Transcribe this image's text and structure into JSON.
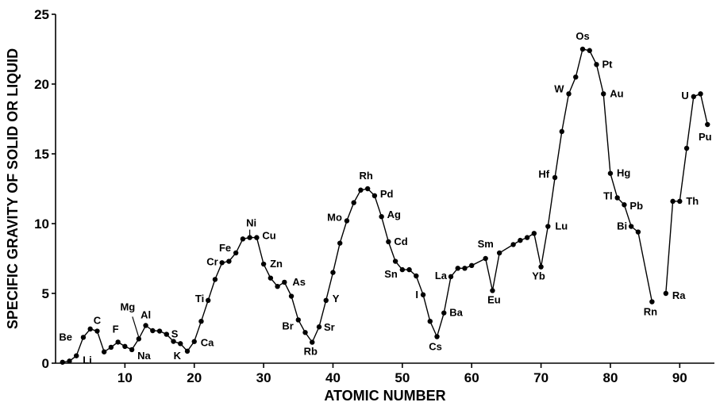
{
  "chart_data": {
    "type": "line",
    "xlabel": "ATOMIC NUMBER",
    "ylabel": "SPECIFIC GRAVITY OF SOLID OR LIQUID",
    "xlim": [
      0,
      95
    ],
    "ylim": [
      0,
      25
    ],
    "grid": false,
    "x_ticks": [
      10,
      20,
      30,
      40,
      50,
      60,
      70,
      80,
      90
    ],
    "y_ticks": [
      0,
      5,
      10,
      15,
      20,
      25
    ],
    "series": [
      {
        "segments": [
          {
            "x": [
              1,
              2,
              3,
              4,
              5,
              6,
              7,
              8,
              9,
              10,
              11,
              12,
              13,
              14,
              15,
              16,
              17,
              18,
              19,
              20,
              21,
              22,
              23,
              24,
              25,
              26,
              27,
              28,
              29,
              30,
              31,
              32,
              33,
              34,
              35,
              36,
              37,
              38,
              39,
              40,
              41,
              42,
              43,
              44,
              45,
              46,
              47,
              48,
              49,
              50,
              51,
              52,
              53,
              54,
              55,
              56,
              57,
              58,
              59,
              60,
              62,
              63,
              64,
              66,
              67,
              68,
              69,
              70,
              71,
              72,
              73,
              74,
              75,
              76,
              77,
              78,
              79,
              80,
              81,
              82,
              83,
              84,
              86
            ],
            "y": [
              0.07,
              0.15,
              0.53,
              1.85,
              2.45,
              2.3,
              0.81,
              1.14,
              1.51,
              1.2,
              0.97,
              1.74,
              2.7,
              2.33,
              2.3,
              2.07,
              1.56,
              1.4,
              0.86,
              1.55,
              3.0,
              4.5,
              6.0,
              7.2,
              7.3,
              7.9,
              8.9,
              9.0,
              9.0,
              7.1,
              6.1,
              5.5,
              5.8,
              4.8,
              3.1,
              2.2,
              1.5,
              2.6,
              4.5,
              6.5,
              8.6,
              10.2,
              11.5,
              12.4,
              12.5,
              12.0,
              10.5,
              8.7,
              7.3,
              6.7,
              6.7,
              6.25,
              4.9,
              3.0,
              1.9,
              3.6,
              6.2,
              6.8,
              6.8,
              7.0,
              7.5,
              5.2,
              7.9,
              8.5,
              8.8,
              9.0,
              9.3,
              6.9,
              9.8,
              13.3,
              16.6,
              19.3,
              20.5,
              22.5,
              22.4,
              21.4,
              19.3,
              13.6,
              11.85,
              11.35,
              9.8,
              9.4,
              4.4
            ]
          },
          {
            "x": [
              88,
              89,
              90,
              91,
              92,
              93,
              94
            ],
            "y": [
              5.0,
              11.6,
              11.6,
              15.4,
              19.1,
              19.3,
              17.1
            ]
          }
        ]
      }
    ],
    "annotations": [
      {
        "text": "Be",
        "x": 4
      },
      {
        "text": "Li",
        "x": 3
      },
      {
        "text": "C",
        "x": 6
      },
      {
        "text": "F",
        "x": 9
      },
      {
        "text": "Mg",
        "x": 12
      },
      {
        "text": "Na",
        "x": 11
      },
      {
        "text": "Al",
        "x": 13
      },
      {
        "text": "S",
        "x": 16
      },
      {
        "text": "K",
        "x": 19
      },
      {
        "text": "Ca",
        "x": 20
      },
      {
        "text": "Ti",
        "x": 22
      },
      {
        "text": "Cr",
        "x": 24
      },
      {
        "text": "Fe",
        "x": 26
      },
      {
        "text": "Ni",
        "x": 28
      },
      {
        "text": "Cu",
        "x": 29
      },
      {
        "text": "Zn",
        "x": 30
      },
      {
        "text": "As",
        "x": 33
      },
      {
        "text": "Br",
        "x": 35
      },
      {
        "text": "Rb",
        "x": 37
      },
      {
        "text": "Sr",
        "x": 38
      },
      {
        "text": "Y",
        "x": 39
      },
      {
        "text": "Mo",
        "x": 42
      },
      {
        "text": "Rh",
        "x": 45
      },
      {
        "text": "Pd",
        "x": 46
      },
      {
        "text": "Ag",
        "x": 47
      },
      {
        "text": "Cd",
        "x": 48
      },
      {
        "text": "Sn",
        "x": 50
      },
      {
        "text": "I",
        "x": 53
      },
      {
        "text": "Cs",
        "x": 55
      },
      {
        "text": "Ba",
        "x": 56
      },
      {
        "text": "La",
        "x": 57
      },
      {
        "text": "Sm",
        "x": 62
      },
      {
        "text": "Eu",
        "x": 63
      },
      {
        "text": "Yb",
        "x": 70
      },
      {
        "text": "Lu",
        "x": 71
      },
      {
        "text": "Hf",
        "x": 72
      },
      {
        "text": "W",
        "x": 74
      },
      {
        "text": "Os",
        "x": 76
      },
      {
        "text": "Pt",
        "x": 78
      },
      {
        "text": "Au",
        "x": 79
      },
      {
        "text": "Hg",
        "x": 80
      },
      {
        "text": "Tl",
        "x": 81
      },
      {
        "text": "Pb",
        "x": 82
      },
      {
        "text": "Bi",
        "x": 83
      },
      {
        "text": "Rn",
        "x": 86
      },
      {
        "text": "Ra",
        "x": 88
      },
      {
        "text": "Th",
        "x": 90
      },
      {
        "text": "U",
        "x": 92
      },
      {
        "text": "Pu",
        "x": 94
      }
    ]
  }
}
